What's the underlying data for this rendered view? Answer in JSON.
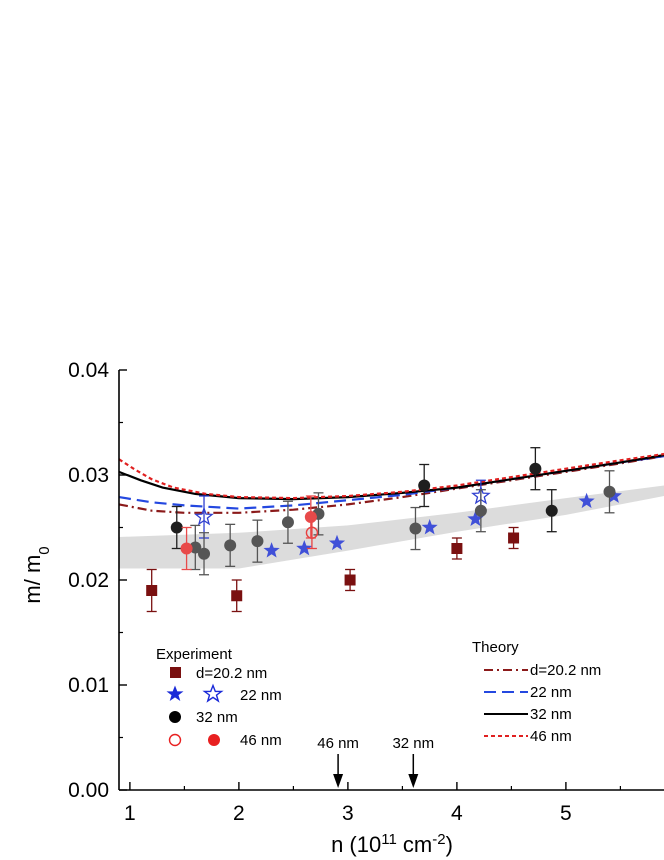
{
  "chart_data": {
    "type": "scatter",
    "xlabel": "n (10",
    "xlabel_sup": "11",
    "xlabel_mid": " cm",
    "xlabel_sup2": "-2",
    "xlabel_end": ")",
    "ylabel": "m/ m",
    "ylabel_sub": "0",
    "xlim": [
      0.9,
      5.9
    ],
    "ylim": [
      0.0,
      0.04
    ],
    "x_ticks": [
      1,
      2,
      3,
      4,
      5
    ],
    "x_tick_labels": [
      "1",
      "2",
      "3",
      "4",
      "5"
    ],
    "y_ticks": [
      0.0,
      0.01,
      0.02,
      0.03,
      0.04
    ],
    "y_tick_labels": [
      "0.00",
      "0.01",
      "0.02",
      "0.03",
      "0.04"
    ],
    "band": {
      "color": "#dcdcdc",
      "upper": [
        [
          0.9,
          0.0241
        ],
        [
          2.0,
          0.0245
        ],
        [
          3.0,
          0.0252
        ],
        [
          4.0,
          0.0264
        ],
        [
          5.0,
          0.0278
        ],
        [
          5.9,
          0.029
        ]
      ],
      "lower": [
        [
          0.9,
          0.0211
        ],
        [
          2.0,
          0.0211
        ],
        [
          3.0,
          0.0228
        ],
        [
          4.0,
          0.0246
        ],
        [
          5.0,
          0.0262
        ],
        [
          5.9,
          0.028
        ]
      ]
    },
    "experiment_legend_title": "Experiment",
    "theory_legend_title": "Theory",
    "experiment_series": [
      {
        "name": "d=20.2 nm",
        "marker": "square",
        "color": "#7a1010",
        "points": [
          {
            "x": 1.2,
            "y": 0.019,
            "err": 0.002
          },
          {
            "x": 1.98,
            "y": 0.0185,
            "err": 0.0015
          },
          {
            "x": 3.02,
            "y": 0.02,
            "err": 0.001
          },
          {
            "x": 4.0,
            "y": 0.023,
            "err": 0.001
          },
          {
            "x": 4.52,
            "y": 0.024,
            "err": 0.001
          }
        ]
      },
      {
        "name": "22 nm",
        "marker": "star",
        "color": "#4050d8",
        "points": [
          {
            "x": 2.3,
            "y": 0.0228
          },
          {
            "x": 2.6,
            "y": 0.023
          },
          {
            "x": 2.9,
            "y": 0.0235
          },
          {
            "x": 3.75,
            "y": 0.025
          },
          {
            "x": 4.17,
            "y": 0.0258
          },
          {
            "x": 5.19,
            "y": 0.0275
          },
          {
            "x": 5.44,
            "y": 0.028
          }
        ]
      },
      {
        "name": "22 nm",
        "marker": "star-open",
        "color": "#3040d0",
        "points": [
          {
            "x": 1.68,
            "y": 0.026,
            "err": 0.002
          },
          {
            "x": 4.22,
            "y": 0.028,
            "err": 0.0015
          }
        ]
      },
      {
        "name": "32 nm",
        "marker": "circle",
        "color": "#1e1e1e",
        "points": [
          {
            "x": 1.43,
            "y": 0.025,
            "err": 0.002
          },
          {
            "x": 3.7,
            "y": 0.029,
            "err": 0.002
          },
          {
            "x": 4.72,
            "y": 0.0306,
            "err": 0.002
          },
          {
            "x": 4.87,
            "y": 0.0266,
            "err": 0.002
          }
        ]
      },
      {
        "name": "32 nm",
        "marker": "circle",
        "color": "#555555",
        "points": [
          {
            "x": 1.6,
            "y": 0.0231,
            "err": 0.0021
          },
          {
            "x": 1.68,
            "y": 0.0225,
            "err": 0.002
          },
          {
            "x": 1.92,
            "y": 0.0233,
            "err": 0.002
          },
          {
            "x": 2.17,
            "y": 0.0237,
            "err": 0.002
          },
          {
            "x": 2.45,
            "y": 0.0255,
            "err": 0.002
          },
          {
            "x": 2.73,
            "y": 0.0263,
            "err": 0.002
          },
          {
            "x": 3.62,
            "y": 0.0249,
            "err": 0.002
          },
          {
            "x": 4.22,
            "y": 0.0266,
            "err": 0.002
          },
          {
            "x": 5.4,
            "y": 0.0284,
            "err": 0.002
          }
        ]
      },
      {
        "name": "46 nm",
        "marker": "circle-open",
        "color": "#e84040",
        "points": [
          {
            "x": 2.67,
            "y": 0.0245,
            "err": 0.0015
          }
        ]
      },
      {
        "name": "46 nm",
        "marker": "circle",
        "color": "#e84a4a",
        "points": [
          {
            "x": 1.52,
            "y": 0.023,
            "err": 0.002
          },
          {
            "x": 2.66,
            "y": 0.026,
            "err": 0.002
          }
        ]
      }
    ],
    "theory_series": [
      {
        "name": "d=20.2 nm",
        "color": "#8b1a1a",
        "dash": "9 4 2 4",
        "points": [
          [
            0.9,
            0.0272
          ],
          [
            1.2,
            0.0266
          ],
          [
            1.5,
            0.0264
          ],
          [
            2.0,
            0.0264
          ],
          [
            2.5,
            0.0267
          ],
          [
            3.0,
            0.0272
          ],
          [
            3.5,
            0.0279
          ],
          [
            4.0,
            0.0287
          ],
          [
            4.5,
            0.0295
          ],
          [
            5.0,
            0.0303
          ],
          [
            5.5,
            0.0311
          ],
          [
            5.9,
            0.0318
          ]
        ]
      },
      {
        "name": "22 nm",
        "color": "#2448e0",
        "dash": "12 6",
        "points": [
          [
            0.9,
            0.0279
          ],
          [
            1.2,
            0.0274
          ],
          [
            1.5,
            0.0271
          ],
          [
            2.0,
            0.0268
          ],
          [
            2.5,
            0.0271
          ],
          [
            3.0,
            0.0276
          ],
          [
            3.5,
            0.0281
          ],
          [
            4.0,
            0.0288
          ],
          [
            4.5,
            0.0296
          ],
          [
            5.0,
            0.0304
          ],
          [
            5.5,
            0.0312
          ],
          [
            5.9,
            0.0318
          ]
        ]
      },
      {
        "name": "32 nm",
        "color": "#000000",
        "dash": "",
        "points": [
          [
            0.9,
            0.0303
          ],
          [
            1.1,
            0.0295
          ],
          [
            1.3,
            0.0288
          ],
          [
            1.6,
            0.0282
          ],
          [
            2.0,
            0.0278
          ],
          [
            2.5,
            0.0277
          ],
          [
            3.0,
            0.0279
          ],
          [
            3.5,
            0.0283
          ],
          [
            4.0,
            0.0288
          ],
          [
            4.5,
            0.0296
          ],
          [
            5.0,
            0.0304
          ],
          [
            5.5,
            0.0312
          ],
          [
            5.9,
            0.0319
          ]
        ]
      },
      {
        "name": "46 nm",
        "color": "#e02020",
        "dash": "4 3",
        "points": [
          [
            0.9,
            0.0315
          ],
          [
            1.05,
            0.0305
          ],
          [
            1.2,
            0.0296
          ],
          [
            1.4,
            0.0288
          ],
          [
            1.7,
            0.0282
          ],
          [
            2.0,
            0.0279
          ],
          [
            2.5,
            0.0278
          ],
          [
            3.0,
            0.028
          ],
          [
            3.5,
            0.0284
          ],
          [
            4.0,
            0.029
          ],
          [
            4.5,
            0.0298
          ],
          [
            5.0,
            0.0306
          ],
          [
            5.5,
            0.0314
          ],
          [
            5.9,
            0.032
          ]
        ]
      }
    ],
    "annotations": [
      {
        "text": "46 nm",
        "x": 2.91
      },
      {
        "text": "32 nm",
        "x": 3.6
      }
    ]
  }
}
